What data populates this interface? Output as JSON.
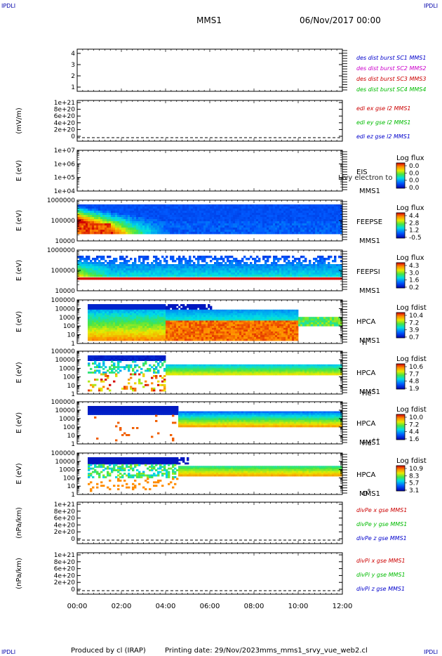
{
  "header": {
    "corner": "IPDLI",
    "spacecraft": "MMS1",
    "date": "06/Nov/2017 00:00"
  },
  "footer": {
    "producer": "Produced by cl (IRAP)",
    "printing": "Printing date: 29/Nov/2023",
    "file": "mms_mms1_srvy_vue_web2.cl"
  },
  "time_axis": {
    "ticks": [
      "00:00",
      "02:00",
      "04:00",
      "06:00",
      "08:00",
      "10:00",
      "12:00"
    ]
  },
  "panels": [
    {
      "id": "burst",
      "ylabel": "",
      "yticks": [
        "4",
        "3",
        "2",
        "1"
      ],
      "legend": [
        {
          "text": "des dist burst SC1 MMS1",
          "color": "#0000cc"
        },
        {
          "text": "des dist burst SC2 MMS2",
          "color": "#cc00cc"
        },
        {
          "text": "des dist burst SC3 MMS3",
          "color": "#cc0000"
        },
        {
          "text": "des dist burst SC4 MMS4",
          "color": "#00bb00"
        }
      ]
    },
    {
      "id": "edi",
      "ylabel": "(mV/m)",
      "yticks": [
        "1e+21",
        "8e+20",
        "6e+20",
        "4e+20",
        "2e+20",
        "0"
      ],
      "legend": [
        {
          "text": "edi ex gse l2 MMS1",
          "color": "#cc0000"
        },
        {
          "text": "edi ey gse l2 MMS1",
          "color": "#00bb00"
        },
        {
          "text": "edi ez gse l2 MMS1",
          "color": "#0000cc"
        }
      ]
    },
    {
      "id": "eis",
      "ylabel": "E (eV)",
      "yticks": [
        "1e+07",
        "1e+06",
        "1e+05",
        "1e+04"
      ],
      "inst": "EIS",
      "sc": "MMS1",
      "species": "",
      "overlap": "Livy electron to",
      "cbar_title": "Log flux",
      "cbar_ticks": [
        "0.0",
        "0.0",
        "0.0",
        "0.0"
      ]
    },
    {
      "id": "feepse",
      "ylabel": "E (eV)",
      "yticks": [
        "1000000",
        "100000",
        "10000"
      ],
      "inst": "FEEPSE",
      "sc": "MMS1",
      "species": "",
      "cbar_title": "Log flux",
      "cbar_ticks": [
        "4.4",
        "2.8",
        "1.2",
        "-0.5"
      ]
    },
    {
      "id": "feepsi",
      "ylabel": "E (eV)",
      "yticks": [
        "1000000",
        "100000",
        "10000"
      ],
      "inst": "FEEPSI",
      "sc": "MMS1",
      "species": "",
      "cbar_title": "Log flux",
      "cbar_ticks": [
        "4.3",
        "3.0",
        "1.6",
        "0.2"
      ]
    },
    {
      "id": "hpca_h",
      "ylabel": "E (eV)",
      "yticks": [
        "100000",
        "10000",
        "1000",
        "100",
        "10",
        "1"
      ],
      "inst": "HPCA",
      "sc": "MMS1",
      "species": "H",
      "charge": "+",
      "cbar_title": "Log fdist",
      "cbar_ticks": [
        "10.4",
        "7.2",
        "3.9",
        "0.7"
      ]
    },
    {
      "id": "hpca_he",
      "ylabel": "E (eV)",
      "yticks": [
        "100000",
        "10000",
        "1000",
        "100",
        "10",
        "1"
      ],
      "inst": "HPCA",
      "sc": "MMS1",
      "species": "He",
      "charge": "+",
      "cbar_title": "Log fdist",
      "cbar_ticks": [
        "10.6",
        "7.7",
        "4.8",
        "1.9"
      ]
    },
    {
      "id": "hpca_he2",
      "ylabel": "E (eV)",
      "yticks": [
        "100000",
        "10000",
        "1000",
        "100",
        "10",
        "1"
      ],
      "inst": "HPCA",
      "sc": "MMS1",
      "species": "He",
      "charge": "++",
      "cbar_title": "Log fdist",
      "cbar_ticks": [
        "10.0",
        "7.2",
        "4.4",
        "1.6"
      ]
    },
    {
      "id": "hpca_o",
      "ylabel": "E (eV)",
      "yticks": [
        "100000",
        "10000",
        "1000",
        "100",
        "10",
        "1"
      ],
      "inst": "HPCA",
      "sc": "MMS1",
      "species": "O",
      "charge": "+",
      "cbar_title": "Log fdist",
      "cbar_ticks": [
        "10.9",
        "8.3",
        "5.7",
        "3.1"
      ]
    },
    {
      "id": "divpe",
      "ylabel": "(nPa/km)",
      "yticks": [
        "1e+21",
        "8e+20",
        "6e+20",
        "4e+20",
        "2e+20",
        "0"
      ],
      "legend": [
        {
          "text": "divPe x gse MMS1",
          "color": "#cc0000"
        },
        {
          "text": "divPe y gse MMS1",
          "color": "#00bb00"
        },
        {
          "text": "divPe z gse MMS1",
          "color": "#0000cc"
        }
      ]
    },
    {
      "id": "divpi",
      "ylabel": "(nPa/km)",
      "yticks": [
        "1e+21",
        "8e+20",
        "6e+20",
        "4e+20",
        "2e+20",
        "0"
      ],
      "legend": [
        {
          "text": "divPi x gse MMS1",
          "color": "#cc0000"
        },
        {
          "text": "divPi y gse MMS1",
          "color": "#00bb00"
        },
        {
          "text": "divPi z gse MMS1",
          "color": "#0000cc"
        }
      ]
    }
  ],
  "chart_data": {
    "type": "heatmap",
    "x_range_hours": [
      0,
      12
    ],
    "colormap": "rainbow",
    "spectrograms": [
      {
        "panel": "feepse",
        "description_levels": [
          4.4,
          2.8,
          1.2,
          -0.5
        ]
      },
      {
        "panel": "feepsi",
        "description_levels": [
          4.3,
          3.0,
          1.6,
          0.2
        ]
      },
      {
        "panel": "hpca_h",
        "description_levels": [
          10.4,
          7.2,
          3.9,
          0.7
        ]
      },
      {
        "panel": "hpca_he",
        "description_levels": [
          10.6,
          7.7,
          4.8,
          1.9
        ]
      },
      {
        "panel": "hpca_he2",
        "description_levels": [
          10.0,
          7.2,
          4.4,
          1.6
        ]
      },
      {
        "panel": "hpca_o",
        "description_levels": [
          10.9,
          8.3,
          5.7,
          3.1
        ]
      }
    ]
  }
}
